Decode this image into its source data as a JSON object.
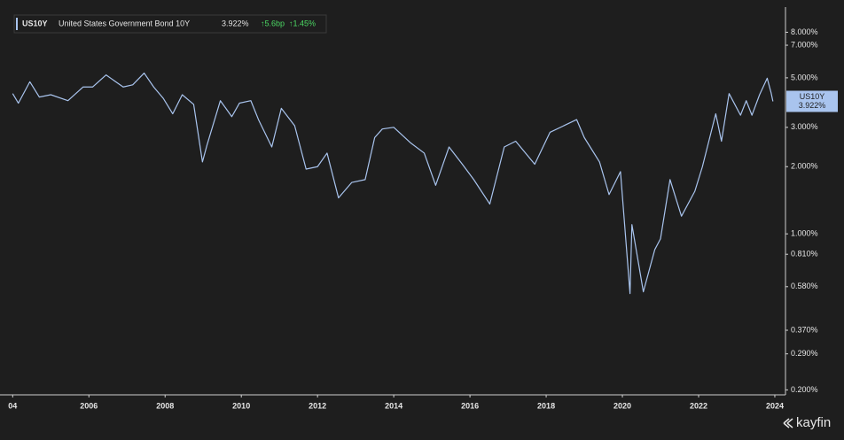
{
  "chart_data": {
    "type": "line",
    "header": {
      "symbol": "US10Y",
      "name": "United States Government Bond 10Y",
      "last": "3.922%",
      "change": "↑5.6bp",
      "change_pct": "↑1.45%"
    },
    "brand": "kayfin",
    "log_scale": true,
    "grid": false,
    "xlim": [
      2003.9,
      2024.28
    ],
    "xticks": [
      {
        "value": 2004,
        "label": "04"
      },
      2006,
      2008,
      2010,
      2012,
      2014,
      2016,
      2018,
      2020,
      2022,
      2024
    ],
    "ylim": [
      0.19,
      10
    ],
    "yticks": [
      {
        "value": 8,
        "label": "8.000%"
      },
      {
        "value": 7,
        "label": "7.000%"
      },
      {
        "value": 5,
        "label": "5.000%"
      },
      {
        "value": 3,
        "label": "3.000%"
      },
      {
        "value": 2,
        "label": "2.000%"
      },
      {
        "value": 1,
        "label": "1.000%"
      },
      {
        "value": 0.81,
        "label": "0.810%"
      },
      {
        "value": 0.58,
        "label": "0.580%"
      },
      {
        "value": 0.37,
        "label": "0.370%"
      },
      {
        "value": 0.29,
        "label": "0.290%"
      },
      {
        "value": 0.2,
        "label": "0.200%"
      }
    ],
    "series": [
      {
        "name": "US10Y",
        "color": "#a9c4ee",
        "x": [
          2004.0,
          2004.15,
          2004.45,
          2004.7,
          2005.0,
          2005.45,
          2005.85,
          2006.1,
          2006.45,
          2006.9,
          2007.15,
          2007.45,
          2007.7,
          2007.95,
          2008.2,
          2008.45,
          2008.75,
          2008.98,
          2009.1,
          2009.45,
          2009.75,
          2009.95,
          2010.25,
          2010.45,
          2010.8,
          2011.05,
          2011.4,
          2011.7,
          2012.0,
          2012.25,
          2012.55,
          2012.9,
          2013.25,
          2013.5,
          2013.7,
          2014.0,
          2014.45,
          2014.8,
          2015.1,
          2015.45,
          2015.8,
          2016.1,
          2016.52,
          2016.9,
          2017.2,
          2017.7,
          2018.1,
          2018.8,
          2019.0,
          2019.4,
          2019.65,
          2019.95,
          2020.2,
          2020.25,
          2020.55,
          2020.85,
          2021.0,
          2021.25,
          2021.55,
          2021.9,
          2022.1,
          2022.45,
          2022.6,
          2022.8,
          2023.1,
          2023.25,
          2023.4,
          2023.6,
          2023.8,
          2023.9,
          2023.95
        ],
        "values": [
          4.25,
          3.85,
          4.8,
          4.1,
          4.2,
          3.95,
          4.55,
          4.55,
          5.15,
          4.55,
          4.65,
          5.25,
          4.55,
          4.05,
          3.45,
          4.2,
          3.8,
          2.1,
          2.5,
          3.95,
          3.35,
          3.85,
          3.95,
          3.25,
          2.45,
          3.65,
          3.05,
          1.95,
          2.0,
          2.3,
          1.45,
          1.7,
          1.75,
          2.7,
          2.95,
          3.0,
          2.55,
          2.3,
          1.65,
          2.45,
          2.05,
          1.75,
          1.36,
          2.45,
          2.6,
          2.05,
          2.85,
          3.25,
          2.7,
          2.1,
          1.5,
          1.9,
          0.54,
          1.1,
          0.55,
          0.85,
          0.95,
          1.75,
          1.2,
          1.55,
          2.0,
          3.45,
          2.6,
          4.25,
          3.4,
          3.95,
          3.4,
          4.2,
          4.98,
          4.3,
          3.922
        ],
        "value_labels": [
          null,
          null,
          null,
          null,
          null,
          null,
          null,
          null,
          null,
          null,
          null,
          null,
          null,
          null,
          null,
          null,
          null,
          null,
          null,
          null,
          null,
          null,
          null,
          null,
          null,
          null,
          null,
          null,
          null,
          null,
          null,
          null,
          null,
          null,
          null,
          null,
          null,
          null,
          null,
          null,
          null,
          null,
          null,
          null,
          null,
          null,
          null,
          null,
          null,
          null,
          null,
          null,
          null,
          null,
          null,
          null,
          null,
          null,
          null,
          null,
          null,
          null,
          null,
          null,
          null,
          null,
          null,
          null,
          null,
          null,
          "3.922%"
        ]
      }
    ]
  }
}
